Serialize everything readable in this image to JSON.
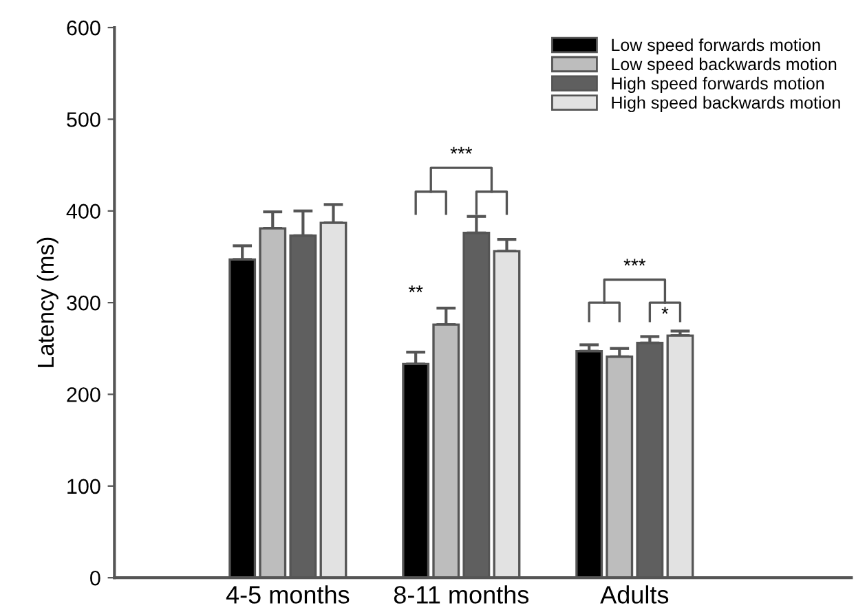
{
  "chart_data": {
    "type": "bar",
    "ylabel": "Latency (ms)",
    "categories": [
      "4-5 months",
      "8-11 months",
      "Adults"
    ],
    "series": [
      {
        "name": "Low speed forwards motion",
        "color": "#000000",
        "values": [
          347,
          233,
          247
        ],
        "errors": [
          [
            347,
            362
          ],
          [
            233,
            246
          ],
          [
            247,
            254
          ]
        ]
      },
      {
        "name": "Low speed backwards motion",
        "color": "#bdbdbd",
        "values": [
          381,
          276,
          241
        ],
        "errors": [
          [
            381,
            399
          ],
          [
            276,
            294
          ],
          [
            241,
            250
          ]
        ]
      },
      {
        "name": "High speed forwards motion",
        "color": "#5f5f5f",
        "values": [
          373,
          376,
          256
        ],
        "errors": [
          [
            373,
            400
          ],
          [
            376,
            394
          ],
          [
            256,
            263
          ]
        ]
      },
      {
        "name": "High speed backwards motion",
        "color": "#e2e2e2",
        "values": [
          387,
          356,
          264
        ],
        "errors": [
          [
            387,
            407
          ],
          [
            356,
            369
          ],
          [
            264,
            269
          ]
        ]
      }
    ],
    "ylim": [
      0,
      600
    ],
    "yticks": [
      0,
      100,
      200,
      300,
      400,
      500,
      600
    ],
    "legend": "top right",
    "grid": false,
    "annotations": [
      "***",
      "**",
      "***",
      "*"
    ]
  }
}
